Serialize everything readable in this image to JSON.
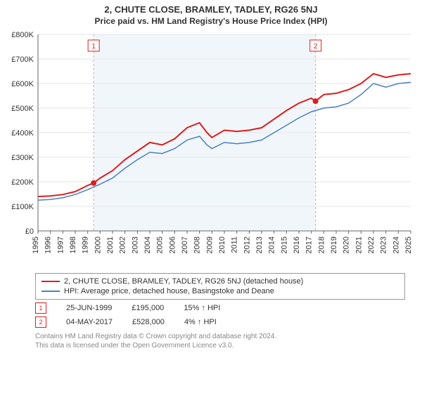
{
  "title": "2, CHUTE CLOSE, BRAMLEY, TADLEY, RG26 5NJ",
  "subtitle": "Price paid vs. HM Land Registry's House Price Index (HPI)",
  "chart": {
    "type": "line",
    "background_color": "#ffffff",
    "plot_band_color": "#f1f6fb",
    "plot_band_xstart": 1999.48,
    "plot_band_xend": 2017.34,
    "grid_color": "#e6e6e6",
    "axis_color": "#666666",
    "xlim": [
      1995,
      2025
    ],
    "ylim": [
      0,
      800000
    ],
    "ytick_step": 100000,
    "yticks": [
      "£0",
      "£100K",
      "£200K",
      "£300K",
      "£400K",
      "£500K",
      "£600K",
      "£700K",
      "£800K"
    ],
    "xticks": [
      1995,
      1996,
      1997,
      1998,
      1999,
      2000,
      2001,
      2002,
      2003,
      2004,
      2005,
      2006,
      2007,
      2008,
      2009,
      2010,
      2011,
      2012,
      2013,
      2014,
      2015,
      2016,
      2017,
      2018,
      2019,
      2020,
      2021,
      2022,
      2023,
      2024,
      2025
    ],
    "series": [
      {
        "label": "2, CHUTE CLOSE, BRAMLEY, TADLEY, RG26 5NJ (detached house)",
        "color": "#d91e1e",
        "line_width": 2,
        "data": [
          [
            1995,
            140000
          ],
          [
            1996,
            142000
          ],
          [
            1997,
            148000
          ],
          [
            1998,
            160000
          ],
          [
            1999,
            185000
          ],
          [
            1999.48,
            195000
          ],
          [
            2000,
            215000
          ],
          [
            2001,
            245000
          ],
          [
            2002,
            290000
          ],
          [
            2003,
            325000
          ],
          [
            2004,
            360000
          ],
          [
            2005,
            350000
          ],
          [
            2006,
            375000
          ],
          [
            2007,
            420000
          ],
          [
            2008,
            440000
          ],
          [
            2008.6,
            400000
          ],
          [
            2009,
            380000
          ],
          [
            2010,
            410000
          ],
          [
            2011,
            405000
          ],
          [
            2012,
            410000
          ],
          [
            2013,
            420000
          ],
          [
            2014,
            455000
          ],
          [
            2015,
            490000
          ],
          [
            2016,
            520000
          ],
          [
            2017,
            540000
          ],
          [
            2017.34,
            528000
          ],
          [
            2018,
            555000
          ],
          [
            2019,
            560000
          ],
          [
            2020,
            575000
          ],
          [
            2021,
            600000
          ],
          [
            2022,
            640000
          ],
          [
            2023,
            625000
          ],
          [
            2024,
            635000
          ],
          [
            2025,
            640000
          ]
        ]
      },
      {
        "label": "HPI: Average price, detached house, Basingstoke and Deane",
        "color": "#4a7fc4",
        "line_width": 1.5,
        "data": [
          [
            1995,
            125000
          ],
          [
            1996,
            128000
          ],
          [
            1997,
            135000
          ],
          [
            1998,
            148000
          ],
          [
            1999,
            168000
          ],
          [
            2000,
            190000
          ],
          [
            2001,
            215000
          ],
          [
            2002,
            255000
          ],
          [
            2003,
            290000
          ],
          [
            2004,
            320000
          ],
          [
            2005,
            315000
          ],
          [
            2006,
            335000
          ],
          [
            2007,
            370000
          ],
          [
            2008,
            385000
          ],
          [
            2008.6,
            350000
          ],
          [
            2009,
            335000
          ],
          [
            2010,
            360000
          ],
          [
            2011,
            355000
          ],
          [
            2012,
            360000
          ],
          [
            2013,
            370000
          ],
          [
            2014,
            400000
          ],
          [
            2015,
            430000
          ],
          [
            2016,
            460000
          ],
          [
            2017,
            485000
          ],
          [
            2018,
            500000
          ],
          [
            2019,
            505000
          ],
          [
            2020,
            520000
          ],
          [
            2021,
            555000
          ],
          [
            2022,
            600000
          ],
          [
            2023,
            585000
          ],
          [
            2024,
            600000
          ],
          [
            2025,
            605000
          ]
        ]
      }
    ],
    "sale_markers": [
      {
        "x": 1999.48,
        "y": 195000,
        "label": "1",
        "color": "#d91e1e"
      },
      {
        "x": 2017.34,
        "y": 528000,
        "label": "2",
        "color": "#d91e1e"
      }
    ],
    "marker_dash_color": "#e8a0a0",
    "tick_fontsize": 11,
    "title_fontsize": 13
  },
  "sales": [
    {
      "marker": "1",
      "date": "25-JUN-1999",
      "price": "£195,000",
      "vs_hpi": "15% ↑ HPI",
      "color": "#d91e1e"
    },
    {
      "marker": "2",
      "date": "04-MAY-2017",
      "price": "£528,000",
      "vs_hpi": "4% ↑ HPI",
      "color": "#d91e1e"
    }
  ],
  "attribution": {
    "line1": "Contains HM Land Registry data © Crown copyright and database right 2024.",
    "line2": "This data is licensed under the Open Government Licence v3.0."
  }
}
